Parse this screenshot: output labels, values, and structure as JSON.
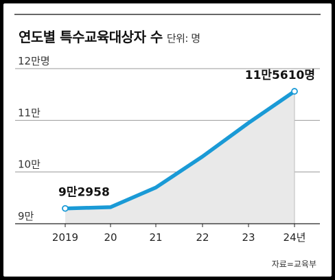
{
  "header": {
    "title": "연도별 특수교육대상자 수",
    "unit": "단위: 명"
  },
  "source": "자료=교육부",
  "chart_data": {
    "type": "area",
    "title": "연도별 특수교육대상자 수",
    "x": [
      "2019",
      "20",
      "21",
      "22",
      "23",
      "24년"
    ],
    "series": [
      {
        "values": [
          92958,
          93200,
          97000,
          103000,
          109500,
          115610
        ]
      }
    ],
    "y_ticks": [
      {
        "value": 90000,
        "label": "9만"
      },
      {
        "value": 100000,
        "label": "10만"
      },
      {
        "value": 110000,
        "label": "11만"
      },
      {
        "value": 120000,
        "label": "12만명"
      }
    ],
    "ylim": [
      90000,
      120000
    ],
    "annotations": [
      {
        "index": 0,
        "label": "9만2958"
      },
      {
        "index": 5,
        "label": "11만5610명"
      }
    ],
    "grid": true,
    "colors": {
      "line": "#1a9ad6",
      "area": "#e9e9e9",
      "grid": "#9a9a9a"
    }
  }
}
